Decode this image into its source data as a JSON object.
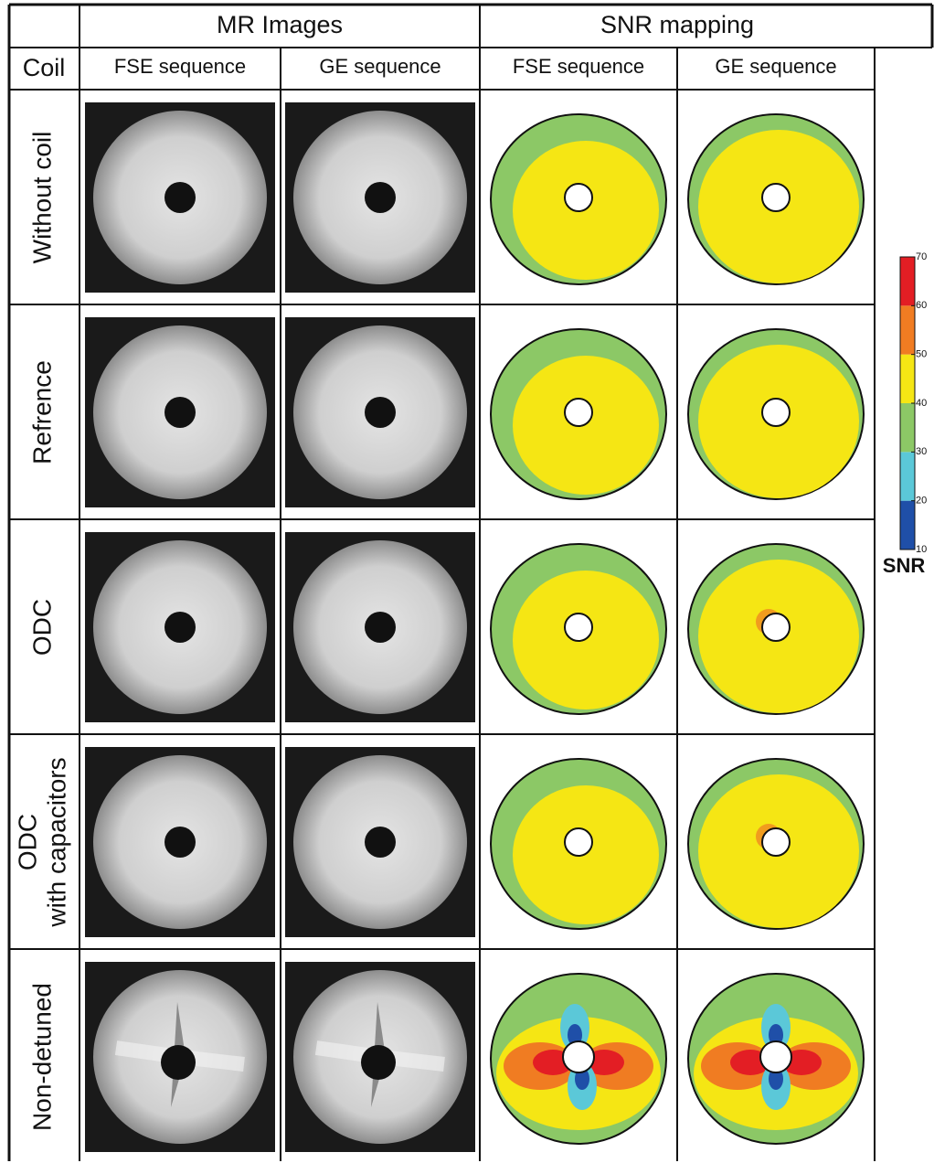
{
  "header": {
    "groups": [
      "MR Images",
      "SNR mapping"
    ],
    "coil_label": "Coil",
    "sequences": [
      "FSE sequence",
      "GE sequence",
      "FSE sequence",
      "GE sequence"
    ]
  },
  "rows": [
    [
      "Without coil"
    ],
    [
      "Refrence"
    ],
    [
      "ODC"
    ],
    [
      "ODC",
      "with capacitors"
    ],
    [
      "Non-detuned"
    ]
  ],
  "colorbar": {
    "label": "SNR",
    "ticks": [
      10,
      20,
      30,
      40,
      50,
      60,
      70
    ],
    "colors": [
      "#1f4fa8",
      "#5bc8d8",
      "#8cc866",
      "#f5e614",
      "#f07c22",
      "#e31e24"
    ]
  }
}
